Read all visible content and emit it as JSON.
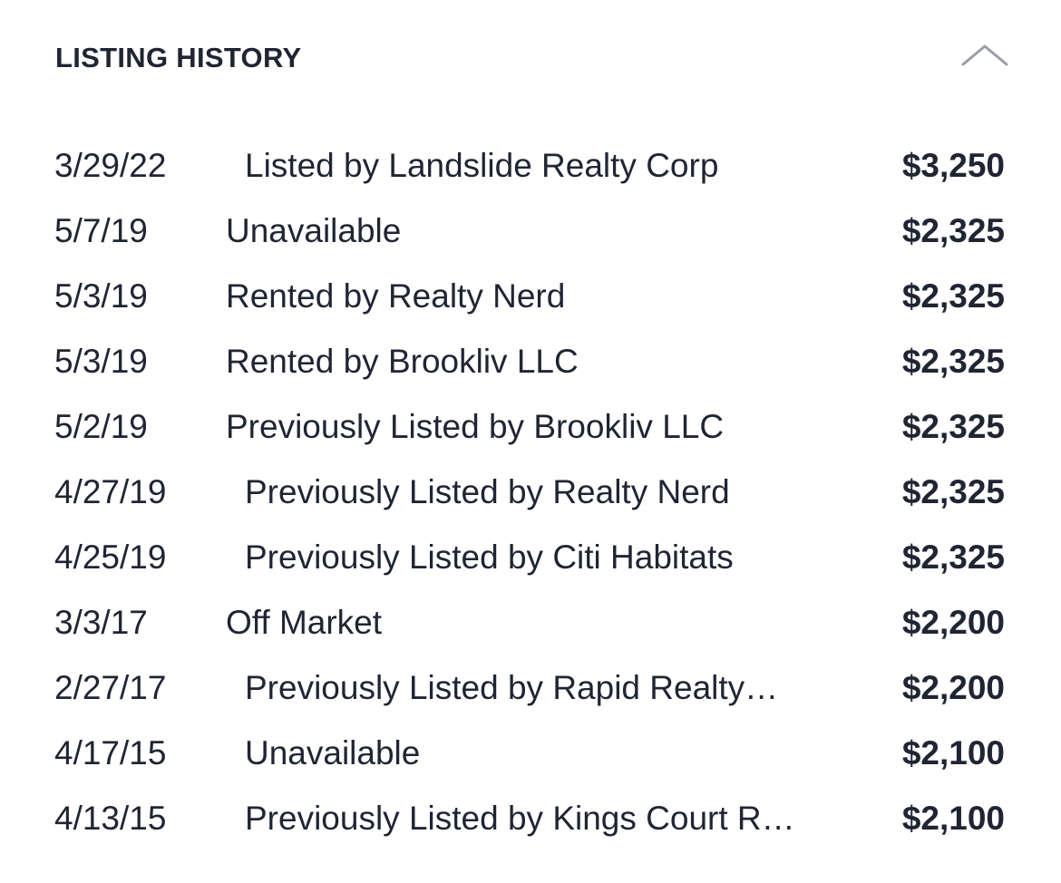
{
  "listing_history": {
    "title": "LISTING HISTORY",
    "toggle_icon": "chevron-up-icon",
    "rows": [
      {
        "date": "3/29/22",
        "event": "Listed by Landslide Realty Corp",
        "price": "$3,250"
      },
      {
        "date": "5/7/19",
        "event": "Unavailable",
        "price": "$2,325"
      },
      {
        "date": "5/3/19",
        "event": "Rented by Realty Nerd",
        "price": "$2,325"
      },
      {
        "date": "5/3/19",
        "event": "Rented by Brookliv LLC",
        "price": "$2,325"
      },
      {
        "date": "5/2/19",
        "event": "Previously Listed by Brookliv LLC",
        "price": "$2,325"
      },
      {
        "date": "4/27/19",
        "event": "Previously Listed by Realty Nerd",
        "price": "$2,325"
      },
      {
        "date": "4/25/19",
        "event": "Previously Listed by Citi Habitats",
        "price": "$2,325"
      },
      {
        "date": "3/3/17",
        "event": "Off Market",
        "price": "$2,200"
      },
      {
        "date": "2/27/17",
        "event": "Previously Listed by Rapid Realty…",
        "price": "$2,200"
      },
      {
        "date": "4/17/15",
        "event": "Unavailable",
        "price": "$2,100"
      },
      {
        "date": "4/13/15",
        "event": "Previously Listed by Kings Court R…",
        "price": "$2,100"
      }
    ]
  }
}
